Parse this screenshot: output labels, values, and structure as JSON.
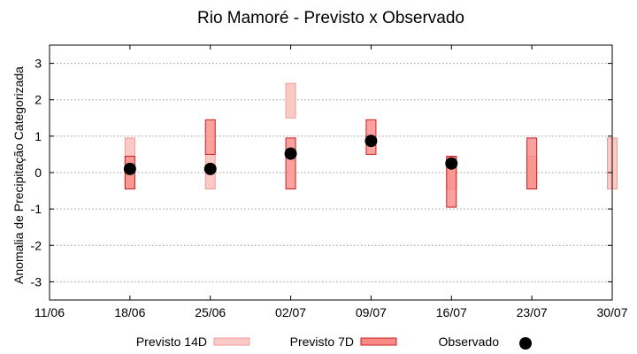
{
  "chart_data": {
    "type": "box",
    "title": "Rio Mamoré - Previsto x Observado",
    "xlabel": "",
    "ylabel": "Anomalia de Precipitação Categorizada",
    "ylim": [
      -3.5,
      3.5
    ],
    "yticks": [
      3,
      2,
      1,
      0,
      -1,
      -2,
      -3
    ],
    "xlim": [
      "2023-06-11",
      "2023-07-30"
    ],
    "xticks": [
      "11/06",
      "18/06",
      "25/06",
      "02/07",
      "09/07",
      "16/07",
      "23/07",
      "30/07"
    ],
    "grid": "horizontal dotted",
    "legend_placement": "bottom",
    "colors": {
      "previsto_14d_fill": "#fbcac6",
      "previsto_14d_stroke": "#f09a95",
      "previsto_7d_fill": "#fb8a86",
      "previsto_7d_stroke": "#c81e1e",
      "observado": "#000000"
    },
    "series": [
      {
        "name": "Previsto 14D",
        "kind": "range-box",
        "points": [
          {
            "date": "2023-06-18",
            "low": -0.45,
            "high": 0.95
          },
          {
            "date": "2023-06-25",
            "low": -0.45,
            "high": 0.5
          },
          {
            "date": "2023-07-02",
            "low": 1.5,
            "high": 2.45
          },
          {
            "date": "2023-07-16",
            "low": -0.45,
            "high": 0.45
          },
          {
            "date": "2023-07-23",
            "low": -0.45,
            "high": 0.45
          },
          {
            "date": "2023-07-30",
            "low": -0.45,
            "high": 0.95
          }
        ]
      },
      {
        "name": "Previsto 7D",
        "kind": "range-box",
        "points": [
          {
            "date": "2023-06-18",
            "low": -0.45,
            "high": 0.45
          },
          {
            "date": "2023-06-25",
            "low": 0.5,
            "high": 1.45
          },
          {
            "date": "2023-07-02",
            "low": -0.45,
            "high": 0.95
          },
          {
            "date": "2023-07-09",
            "low": 0.5,
            "high": 1.45
          },
          {
            "date": "2023-07-16",
            "low": -0.95,
            "high": 0.45
          },
          {
            "date": "2023-07-23",
            "low": -0.45,
            "high": 0.95
          }
        ]
      },
      {
        "name": "Observado",
        "kind": "point",
        "points": [
          {
            "date": "2023-06-18",
            "value": 0.1
          },
          {
            "date": "2023-06-25",
            "value": 0.1
          },
          {
            "date": "2023-07-02",
            "value": 0.52
          },
          {
            "date": "2023-07-09",
            "value": 0.87
          },
          {
            "date": "2023-07-16",
            "value": 0.25
          }
        ]
      }
    ]
  }
}
